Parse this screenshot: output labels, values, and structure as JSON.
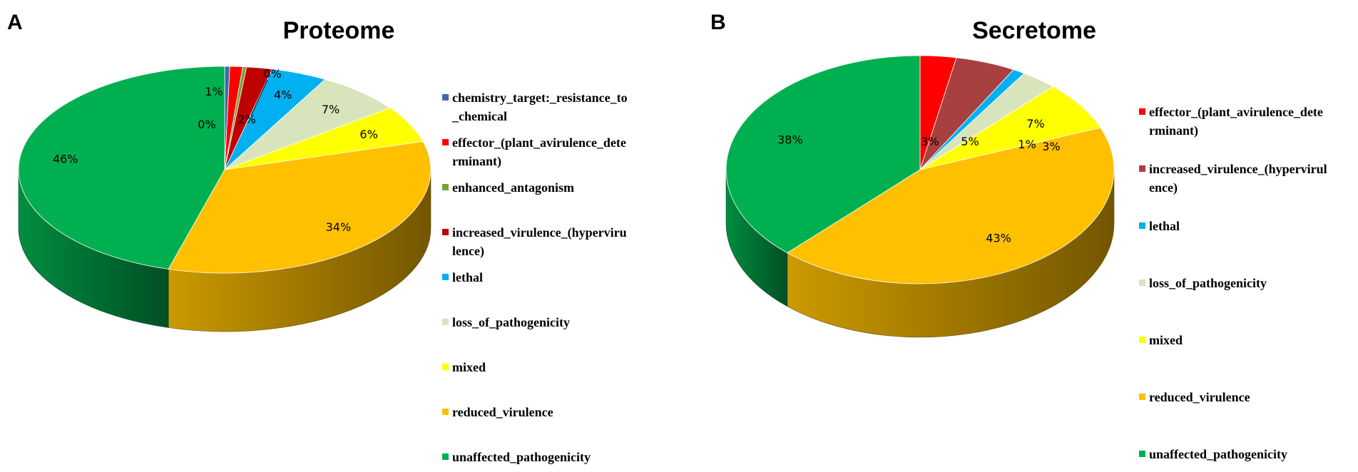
{
  "chart_data": [
    {
      "type": "pie",
      "panel_label": "A",
      "title": "Proteome",
      "legend_position": "right",
      "slices": [
        {
          "label_lines": [
            "chemistry_target:_resistance_to",
            "_chemical"
          ],
          "value": 0.4,
          "text": "0%",
          "color": "#3E6BA8"
        },
        {
          "label_lines": [
            "effector_(plant_avirulence_dete",
            "rminant)"
          ],
          "value": 1.0,
          "text": "1%",
          "color": "#FF0000"
        },
        {
          "label_lines": [
            "enhanced_antagonism"
          ],
          "value": 0.3,
          "text": "0%",
          "color": "#77A237"
        },
        {
          "label_lines": [
            "increased_virulence_(hyperviru",
            "lence)"
          ],
          "value": 2.0,
          "text": "2%",
          "color": "#C00000"
        },
        {
          "label_lines": [
            "lethal"
          ],
          "value": 4.4,
          "text": "4%",
          "color": "#00B0F0"
        },
        {
          "label_lines": [
            "loss_of_pathogenicity"
          ],
          "value": 6.7,
          "text": "7%",
          "color": "#D8E4BC"
        },
        {
          "label_lines": [
            "mixed"
          ],
          "value": 5.8,
          "text": "6%",
          "color": "#FFFF00"
        },
        {
          "label_lines": [
            "reduced_virulence"
          ],
          "value": 33.8,
          "text": "34%",
          "color": "#FFC000"
        },
        {
          "label_lines": [
            "unaffected_pathogenicity"
          ],
          "value": 45.6,
          "text": "46%",
          "color": "#00B050"
        }
      ]
    },
    {
      "type": "pie",
      "panel_label": "B",
      "title": "Secretome",
      "legend_position": "right",
      "slices": [
        {
          "label_lines": [
            "effector_(plant_avirulence_dete",
            "rminant)"
          ],
          "value": 3.0,
          "text": "3%",
          "color": "#FF0000"
        },
        {
          "label_lines": [
            "increased_virulence_(hypervirul",
            "ence)"
          ],
          "value": 5.0,
          "text": "5%",
          "color": "#A94040"
        },
        {
          "label_lines": [
            "lethal"
          ],
          "value": 1.0,
          "text": "1%",
          "color": "#00B0F0"
        },
        {
          "label_lines": [
            "loss_of_pathogenicity"
          ],
          "value": 3.0,
          "text": "3%",
          "color": "#D8E4BC"
        },
        {
          "label_lines": [
            "mixed"
          ],
          "value": 7.0,
          "text": "7%",
          "color": "#FFFF00"
        },
        {
          "label_lines": [
            "reduced_virulence"
          ],
          "value": 43.0,
          "text": "43%",
          "color": "#FFC000"
        },
        {
          "label_lines": [
            "unaffected_pathogenicity"
          ],
          "value": 38.0,
          "text": "38%",
          "color": "#00B050"
        }
      ]
    }
  ]
}
